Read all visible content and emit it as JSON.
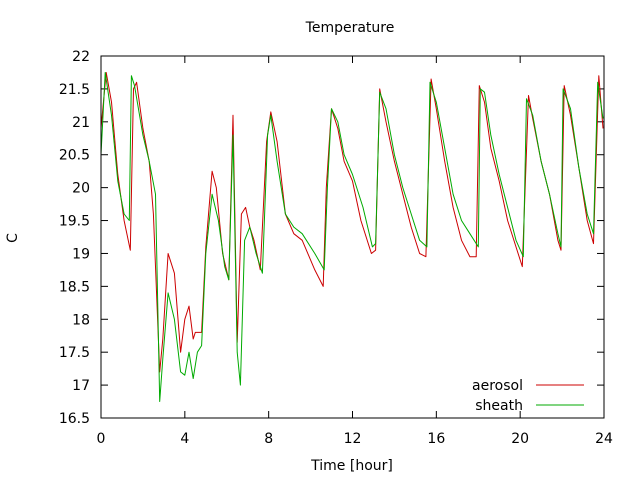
{
  "chart_data": {
    "type": "line",
    "title": "Temperature",
    "xlabel": "Time [hour]",
    "ylabel": "C",
    "xlim": [
      0,
      24
    ],
    "ylim": [
      16.5,
      22
    ],
    "x_ticks": [
      0,
      4,
      8,
      12,
      16,
      20,
      24
    ],
    "y_ticks": [
      16.5,
      17,
      17.5,
      18,
      18.5,
      19,
      19.5,
      20,
      20.5,
      21,
      21.5,
      22
    ],
    "grid": false,
    "legend_position": "bottom-right",
    "series": [
      {
        "name": "aerosol",
        "color": "#cc0000",
        "x": [
          0,
          0.25,
          0.5,
          0.8,
          1.1,
          1.4,
          1.55,
          1.7,
          2.0,
          2.3,
          2.5,
          2.8,
          2.95,
          3.2,
          3.5,
          3.8,
          4.0,
          4.2,
          4.4,
          4.5,
          4.8,
          5.0,
          5.3,
          5.5,
          5.8,
          6.1,
          6.3,
          6.5,
          6.7,
          6.9,
          7.1,
          7.3,
          7.6,
          7.9,
          8.1,
          8.4,
          8.8,
          9.2,
          9.6,
          10.2,
          10.6,
          10.75,
          11.0,
          11.3,
          11.6,
          12.0,
          12.4,
          12.9,
          13.1,
          13.3,
          13.6,
          14.0,
          14.4,
          14.8,
          15.2,
          15.5,
          15.75,
          16.0,
          16.4,
          16.8,
          17.2,
          17.6,
          17.9,
          18.05,
          18.3,
          18.6,
          19.0,
          19.4,
          19.8,
          20.1,
          20.4,
          20.6,
          21.0,
          21.4,
          21.8,
          21.95,
          22.1,
          22.4,
          22.8,
          23.2,
          23.5,
          23.75,
          23.95
        ],
        "y": [
          20.9,
          21.75,
          21.3,
          20.2,
          19.5,
          19.05,
          21.5,
          21.6,
          20.9,
          20.4,
          19.6,
          17.2,
          17.7,
          19.0,
          18.7,
          17.5,
          18.0,
          18.2,
          17.7,
          17.8,
          17.8,
          19.1,
          20.25,
          20.0,
          19.0,
          18.6,
          21.1,
          17.65,
          19.6,
          19.7,
          19.4,
          19.2,
          18.75,
          20.7,
          21.15,
          20.7,
          19.6,
          19.3,
          19.2,
          18.75,
          18.5,
          20.0,
          21.2,
          20.9,
          20.4,
          20.1,
          19.5,
          19.0,
          19.05,
          21.5,
          21.0,
          20.4,
          19.9,
          19.4,
          19.0,
          18.95,
          21.65,
          21.2,
          20.4,
          19.7,
          19.2,
          18.95,
          18.95,
          21.55,
          21.3,
          20.6,
          20.1,
          19.5,
          19.1,
          18.8,
          21.4,
          21.05,
          20.4,
          19.9,
          19.2,
          19.05,
          21.55,
          21.1,
          20.3,
          19.5,
          19.15,
          21.7,
          20.9
        ]
      },
      {
        "name": "sheath",
        "color": "#00aa00",
        "x": [
          0,
          0.2,
          0.5,
          0.8,
          1.1,
          1.35,
          1.45,
          1.6,
          2.0,
          2.3,
          2.6,
          2.8,
          2.95,
          3.2,
          3.5,
          3.8,
          4.0,
          4.2,
          4.4,
          4.6,
          4.8,
          5.0,
          5.3,
          5.6,
          5.9,
          6.1,
          6.3,
          6.5,
          6.65,
          6.85,
          7.1,
          7.4,
          7.7,
          7.95,
          8.1,
          8.4,
          8.8,
          9.2,
          9.6,
          10.2,
          10.65,
          10.8,
          11.0,
          11.3,
          11.6,
          12.0,
          12.5,
          12.95,
          13.1,
          13.3,
          13.6,
          14.0,
          14.4,
          14.8,
          15.2,
          15.55,
          15.7,
          16.0,
          16.4,
          16.8,
          17.2,
          17.6,
          18.0,
          18.1,
          18.3,
          18.6,
          19.0,
          19.4,
          19.8,
          20.15,
          20.3,
          20.6,
          21.0,
          21.4,
          21.8,
          21.95,
          22.05,
          22.4,
          22.8,
          23.2,
          23.5,
          23.7,
          23.95
        ],
        "y": [
          20.5,
          21.75,
          21.1,
          20.1,
          19.6,
          19.5,
          21.7,
          21.55,
          20.8,
          20.4,
          19.9,
          16.75,
          17.4,
          18.4,
          18.0,
          17.2,
          17.15,
          17.5,
          17.1,
          17.5,
          17.6,
          19.0,
          19.9,
          19.5,
          18.8,
          18.6,
          20.8,
          17.5,
          17.0,
          19.2,
          19.4,
          19.0,
          18.7,
          20.8,
          21.1,
          20.4,
          19.6,
          19.4,
          19.3,
          19.0,
          18.75,
          20.0,
          21.2,
          21.0,
          20.5,
          20.2,
          19.7,
          19.1,
          19.15,
          21.45,
          21.2,
          20.5,
          20.0,
          19.6,
          19.2,
          19.1,
          21.6,
          21.3,
          20.6,
          19.9,
          19.5,
          19.3,
          19.1,
          21.5,
          21.45,
          20.8,
          20.2,
          19.7,
          19.2,
          18.95,
          21.35,
          21.1,
          20.4,
          19.9,
          19.3,
          19.1,
          21.5,
          21.2,
          20.3,
          19.6,
          19.3,
          21.6,
          21.05
        ]
      }
    ]
  }
}
